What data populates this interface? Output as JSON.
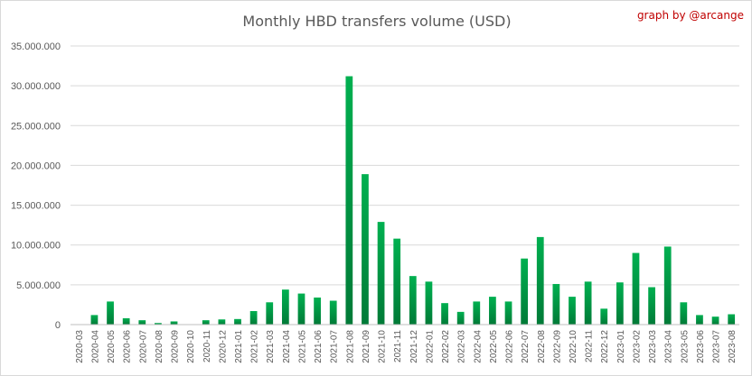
{
  "chart_data": {
    "type": "bar",
    "title": "Monthly HBD transfers volume (USD)",
    "credit": "graph by @arcange",
    "xlabel": "",
    "ylabel": "",
    "ylim": [
      0,
      35000000
    ],
    "yticks": [
      0,
      5000000,
      10000000,
      15000000,
      20000000,
      25000000,
      30000000,
      35000000
    ],
    "ytick_labels": [
      "0",
      "5.000.000",
      "10.000.000",
      "15.000.000",
      "20.000.000",
      "25.000.000",
      "30.000.000",
      "35.000.000"
    ],
    "grid": true,
    "legend": "none",
    "bar_color_top": "#00b050",
    "bar_color_bottom": "#007a37",
    "categories": [
      "2020-03",
      "2020-04",
      "2020-05",
      "2020-06",
      "2020-07",
      "2020-08",
      "2020-09",
      "2020-10",
      "2020-11",
      "2020-12",
      "2021-01",
      "2021-02",
      "2021-03",
      "2021-04",
      "2021-05",
      "2021-06",
      "2021-07",
      "2021-08",
      "2021-09",
      "2021-10",
      "2021-11",
      "2021-12",
      "2022-01",
      "2022-02",
      "2022-03",
      "2022-04",
      "2022-05",
      "2022-06",
      "2022-07",
      "2022-08",
      "2022-09",
      "2022-10",
      "2022-11",
      "2022-12",
      "2023-01",
      "2023-02",
      "2023-03",
      "2023-04",
      "2023-05",
      "2023-06",
      "2023-07",
      "2023-08"
    ],
    "values": [
      0,
      1200000,
      2900000,
      800000,
      550000,
      200000,
      400000,
      50000,
      550000,
      650000,
      700000,
      1700000,
      2800000,
      4400000,
      3900000,
      3400000,
      3000000,
      31200000,
      18900000,
      12900000,
      10800000,
      6100000,
      5400000,
      2700000,
      1600000,
      2900000,
      3500000,
      2900000,
      8300000,
      11000000,
      5100000,
      3500000,
      5400000,
      2000000,
      5300000,
      9000000,
      4700000,
      9800000,
      2800000,
      1200000,
      1000000,
      1300000
    ]
  }
}
